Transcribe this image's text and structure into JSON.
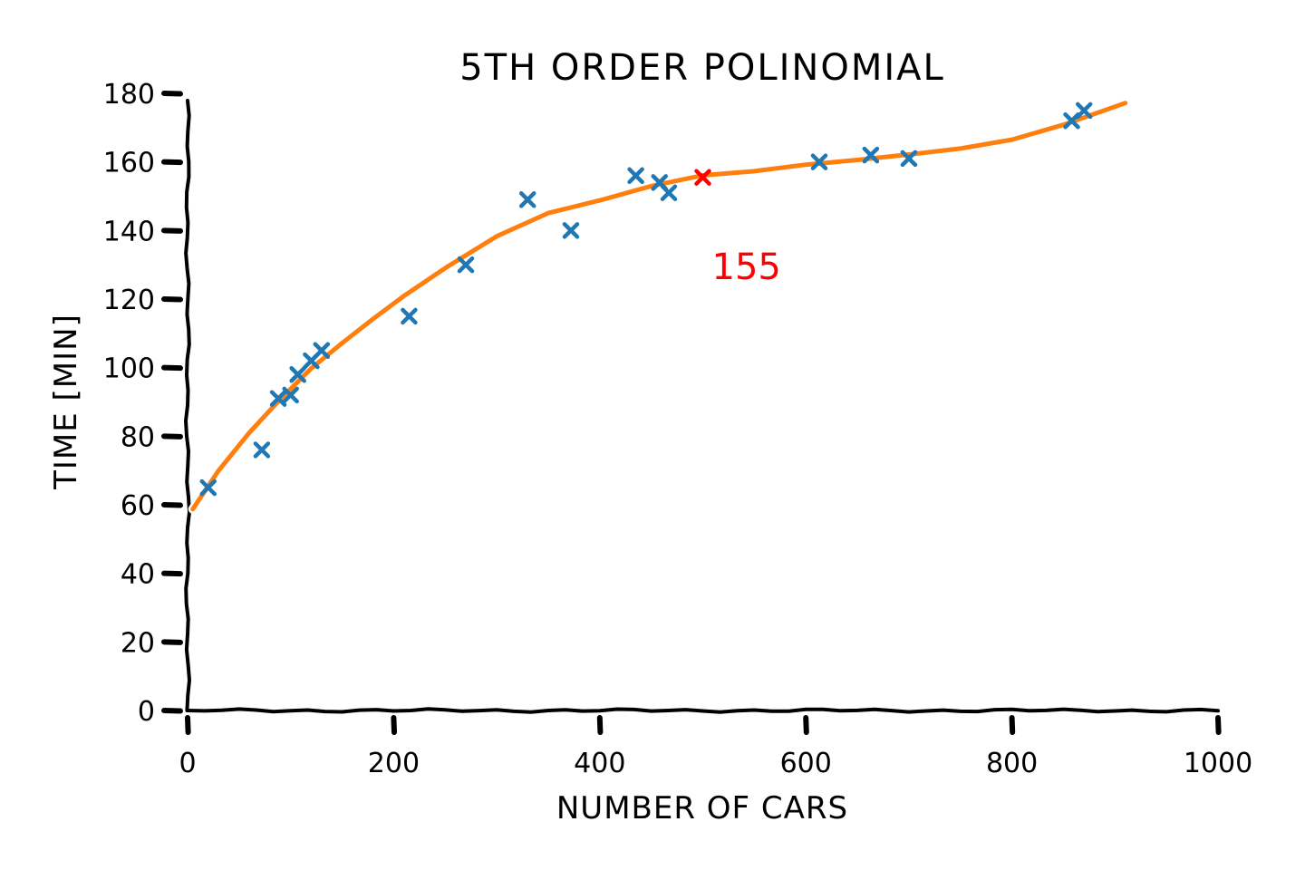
{
  "chart_data": {
    "type": "scatter",
    "title": "5TH ORDER POLINOMIAL",
    "xlabel": "NUMBER OF CARS",
    "ylabel": "TIME [MIN]",
    "xlim": [
      0,
      1000
    ],
    "ylim": [
      0,
      180
    ],
    "x_ticks": [
      "0",
      "200",
      "400",
      "600",
      "800",
      "1000"
    ],
    "y_ticks": [
      "0",
      "20",
      "40",
      "60",
      "80",
      "100",
      "120",
      "140",
      "160",
      "180"
    ],
    "grid": false,
    "series": [
      {
        "kind": "scatter",
        "marker": "x",
        "color": "#1f77b4",
        "points": [
          [
            20,
            65
          ],
          [
            72,
            76
          ],
          [
            88,
            91
          ],
          [
            100,
            92
          ],
          [
            107,
            98
          ],
          [
            120,
            102
          ],
          [
            130,
            105
          ],
          [
            215,
            115
          ],
          [
            270,
            130
          ],
          [
            330,
            149
          ],
          [
            372,
            140
          ],
          [
            435,
            156
          ],
          [
            458,
            154
          ],
          [
            467,
            151
          ],
          [
            613,
            160
          ],
          [
            663,
            162
          ],
          [
            700,
            161
          ],
          [
            858,
            172
          ],
          [
            870,
            175
          ]
        ]
      },
      {
        "kind": "line",
        "color": "#ff7f0e",
        "points": [
          [
            5,
            59
          ],
          [
            30,
            70
          ],
          [
            60,
            81
          ],
          [
            90,
            91
          ],
          [
            120,
            100
          ],
          [
            150,
            107
          ],
          [
            180,
            114
          ],
          [
            210,
            121
          ],
          [
            250,
            129
          ],
          [
            300,
            138
          ],
          [
            350,
            145
          ],
          [
            400,
            149
          ],
          [
            450,
            153
          ],
          [
            500,
            156
          ],
          [
            550,
            157.5
          ],
          [
            600,
            159.5
          ],
          [
            650,
            160.5
          ],
          [
            700,
            162
          ],
          [
            750,
            164
          ],
          [
            800,
            166.5
          ],
          [
            850,
            170.5
          ],
          [
            910,
            177
          ]
        ]
      },
      {
        "kind": "scatter",
        "marker": "x",
        "color": "#ff0000",
        "points": [
          [
            500,
            155.5
          ]
        ]
      }
    ],
    "annotations": [
      {
        "text": "155",
        "x": 500,
        "y": 129,
        "color": "#ff0000"
      }
    ]
  }
}
